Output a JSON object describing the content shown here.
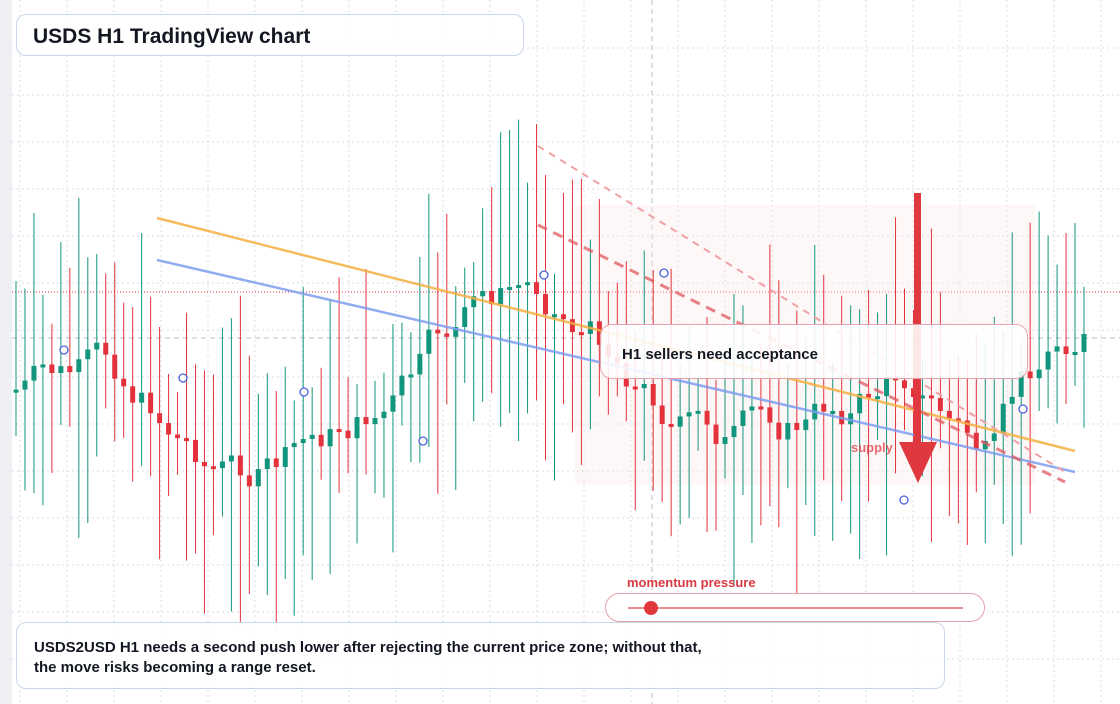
{
  "header": {
    "title": "USDS H1 TradingView chart"
  },
  "annotations": {
    "acceptance": "H1 sellers need acceptance",
    "momentum_label": "momentum pressure",
    "momentum_level": 0.07,
    "supply_label": "supply",
    "note": "USDS2USD H1 needs a second push lower after rejecting the current price zone; without that, the move risks becoming a range reset."
  },
  "colors": {
    "up": "#12957d",
    "down": "#e3323c",
    "trend_orange": "#f5b041",
    "trend_blue": "#7f9ef0",
    "dash_red": "#e05a60",
    "marker": "#4a62d8",
    "grid": "#d9dde3"
  },
  "chart_data": {
    "type": "candlestick",
    "timeframe": "H1",
    "symbol": "USDS2USD",
    "candle_count": 120,
    "trend": "range with lower-highs, sharp sell impulse near the right edge",
    "overlays": [
      "descending orange trendline",
      "descending blue trendline",
      "dashed red resistance lines",
      "bearish arrow at supply"
    ]
  }
}
